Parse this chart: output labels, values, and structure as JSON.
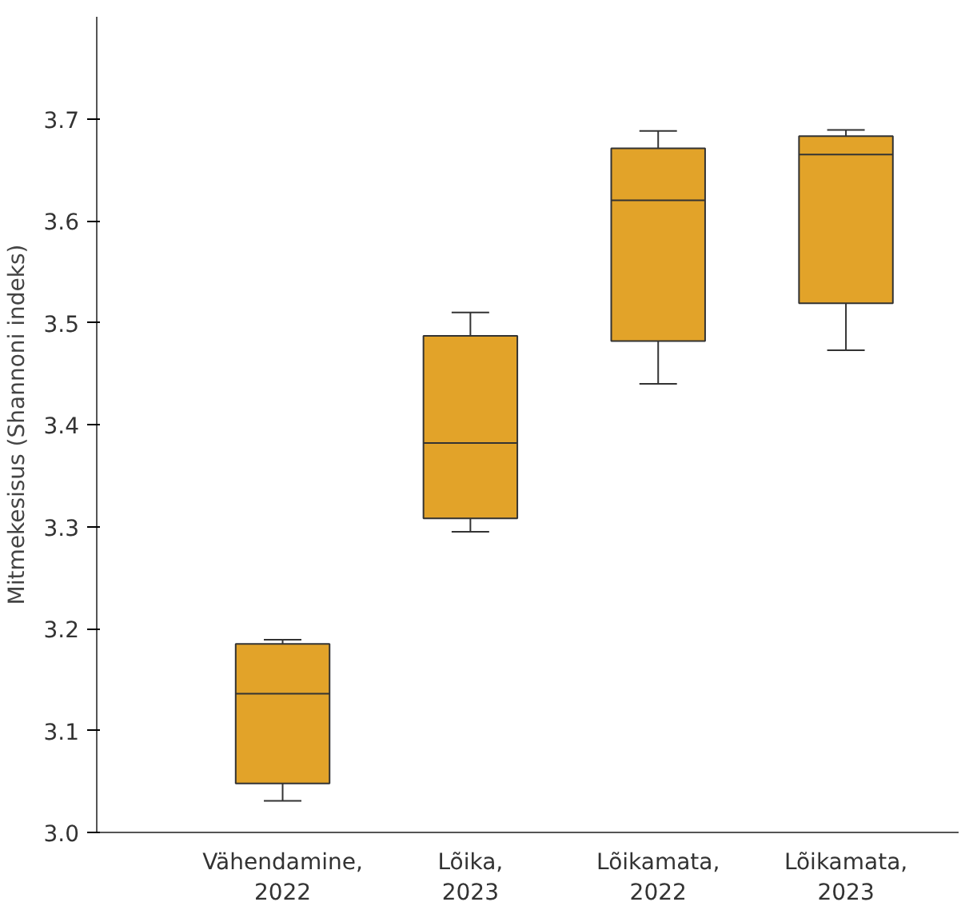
{
  "chart_data": {
    "type": "box",
    "ylabel": "Mitmekesisus (Shannoni indeks)",
    "categories": [
      "Vähendamine,\n2022",
      "Lõika,\n2023",
      "Lõikamata,\n2022",
      "Lõikamata,\n2023"
    ],
    "color": "#e2a329",
    "boxes": [
      {
        "low": 3.031,
        "q1": 3.048,
        "median": 3.136,
        "q3": 3.185,
        "high": 3.189
      },
      {
        "low": 3.295,
        "q1": 3.308,
        "median": 3.382,
        "q3": 3.487,
        "high": 3.51
      },
      {
        "low": 3.44,
        "q1": 3.482,
        "median": 3.62,
        "q3": 3.671,
        "high": 3.688
      },
      {
        "low": 3.473,
        "q1": 3.519,
        "median": 3.665,
        "q3": 3.683,
        "high": 3.689
      }
    ],
    "ylim": [
      3.0,
      3.8
    ],
    "yticks": [
      {
        "value": 3.0,
        "label": "3.0"
      },
      {
        "value": 3.1,
        "label": "3.1"
      },
      {
        "value": 3.2,
        "label": "3.2"
      },
      {
        "value": 3.3,
        "label": "3.3"
      },
      {
        "value": 3.4,
        "label": "3.4"
      },
      {
        "value": 3.5,
        "label": "3.5"
      },
      {
        "value": 3.6,
        "label": "3.6"
      },
      {
        "value": 3.7,
        "label": "3.7"
      }
    ],
    "grid": false
  }
}
